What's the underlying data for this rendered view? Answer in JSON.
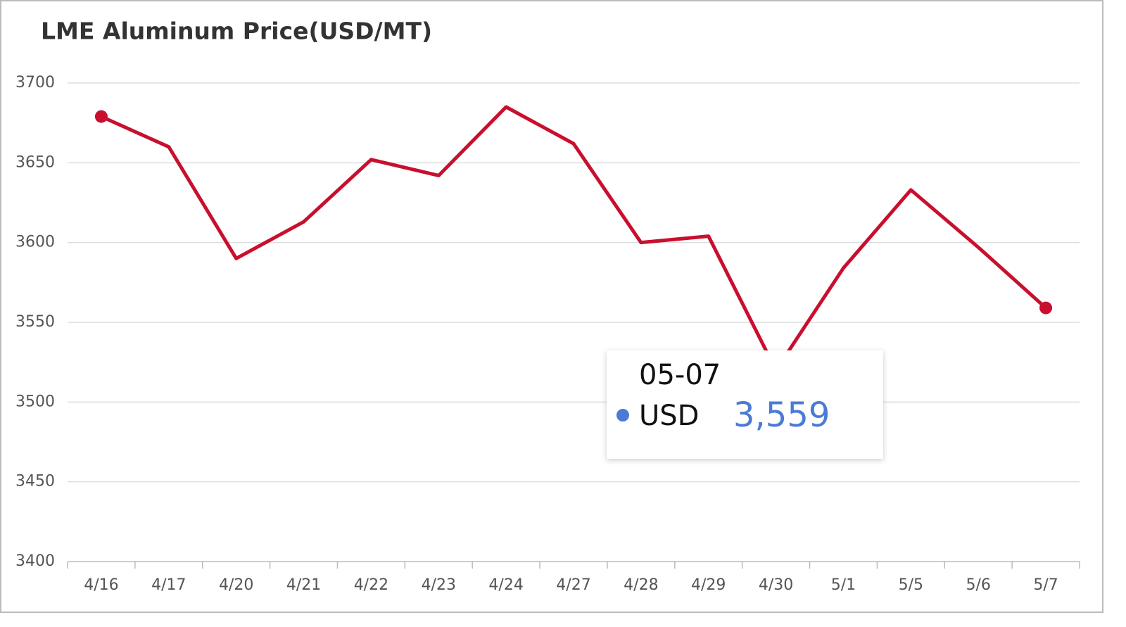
{
  "chart_data": {
    "type": "line",
    "title": "LME Aluminum Price(USD/MT)",
    "categories": [
      "4/16",
      "4/17",
      "4/20",
      "4/21",
      "4/22",
      "4/23",
      "4/24",
      "4/27",
      "4/28",
      "4/29",
      "4/30",
      "5/1",
      "5/5",
      "5/6",
      "5/7"
    ],
    "series": [
      {
        "name": "USD",
        "color": "#c8102e",
        "values": [
          3679,
          3660,
          3590,
          3613,
          3652,
          3642,
          3685,
          3662,
          3600,
          3604,
          3520,
          3584,
          3633,
          3597,
          3559
        ]
      }
    ],
    "ylim": [
      3400,
      3700
    ],
    "yticks": [
      3400,
      3450,
      3500,
      3550,
      3600,
      3650,
      3700
    ],
    "grid": true,
    "tooltip": {
      "title": "05-07",
      "value_label": "3,559",
      "color": "#4a7bd5"
    }
  }
}
